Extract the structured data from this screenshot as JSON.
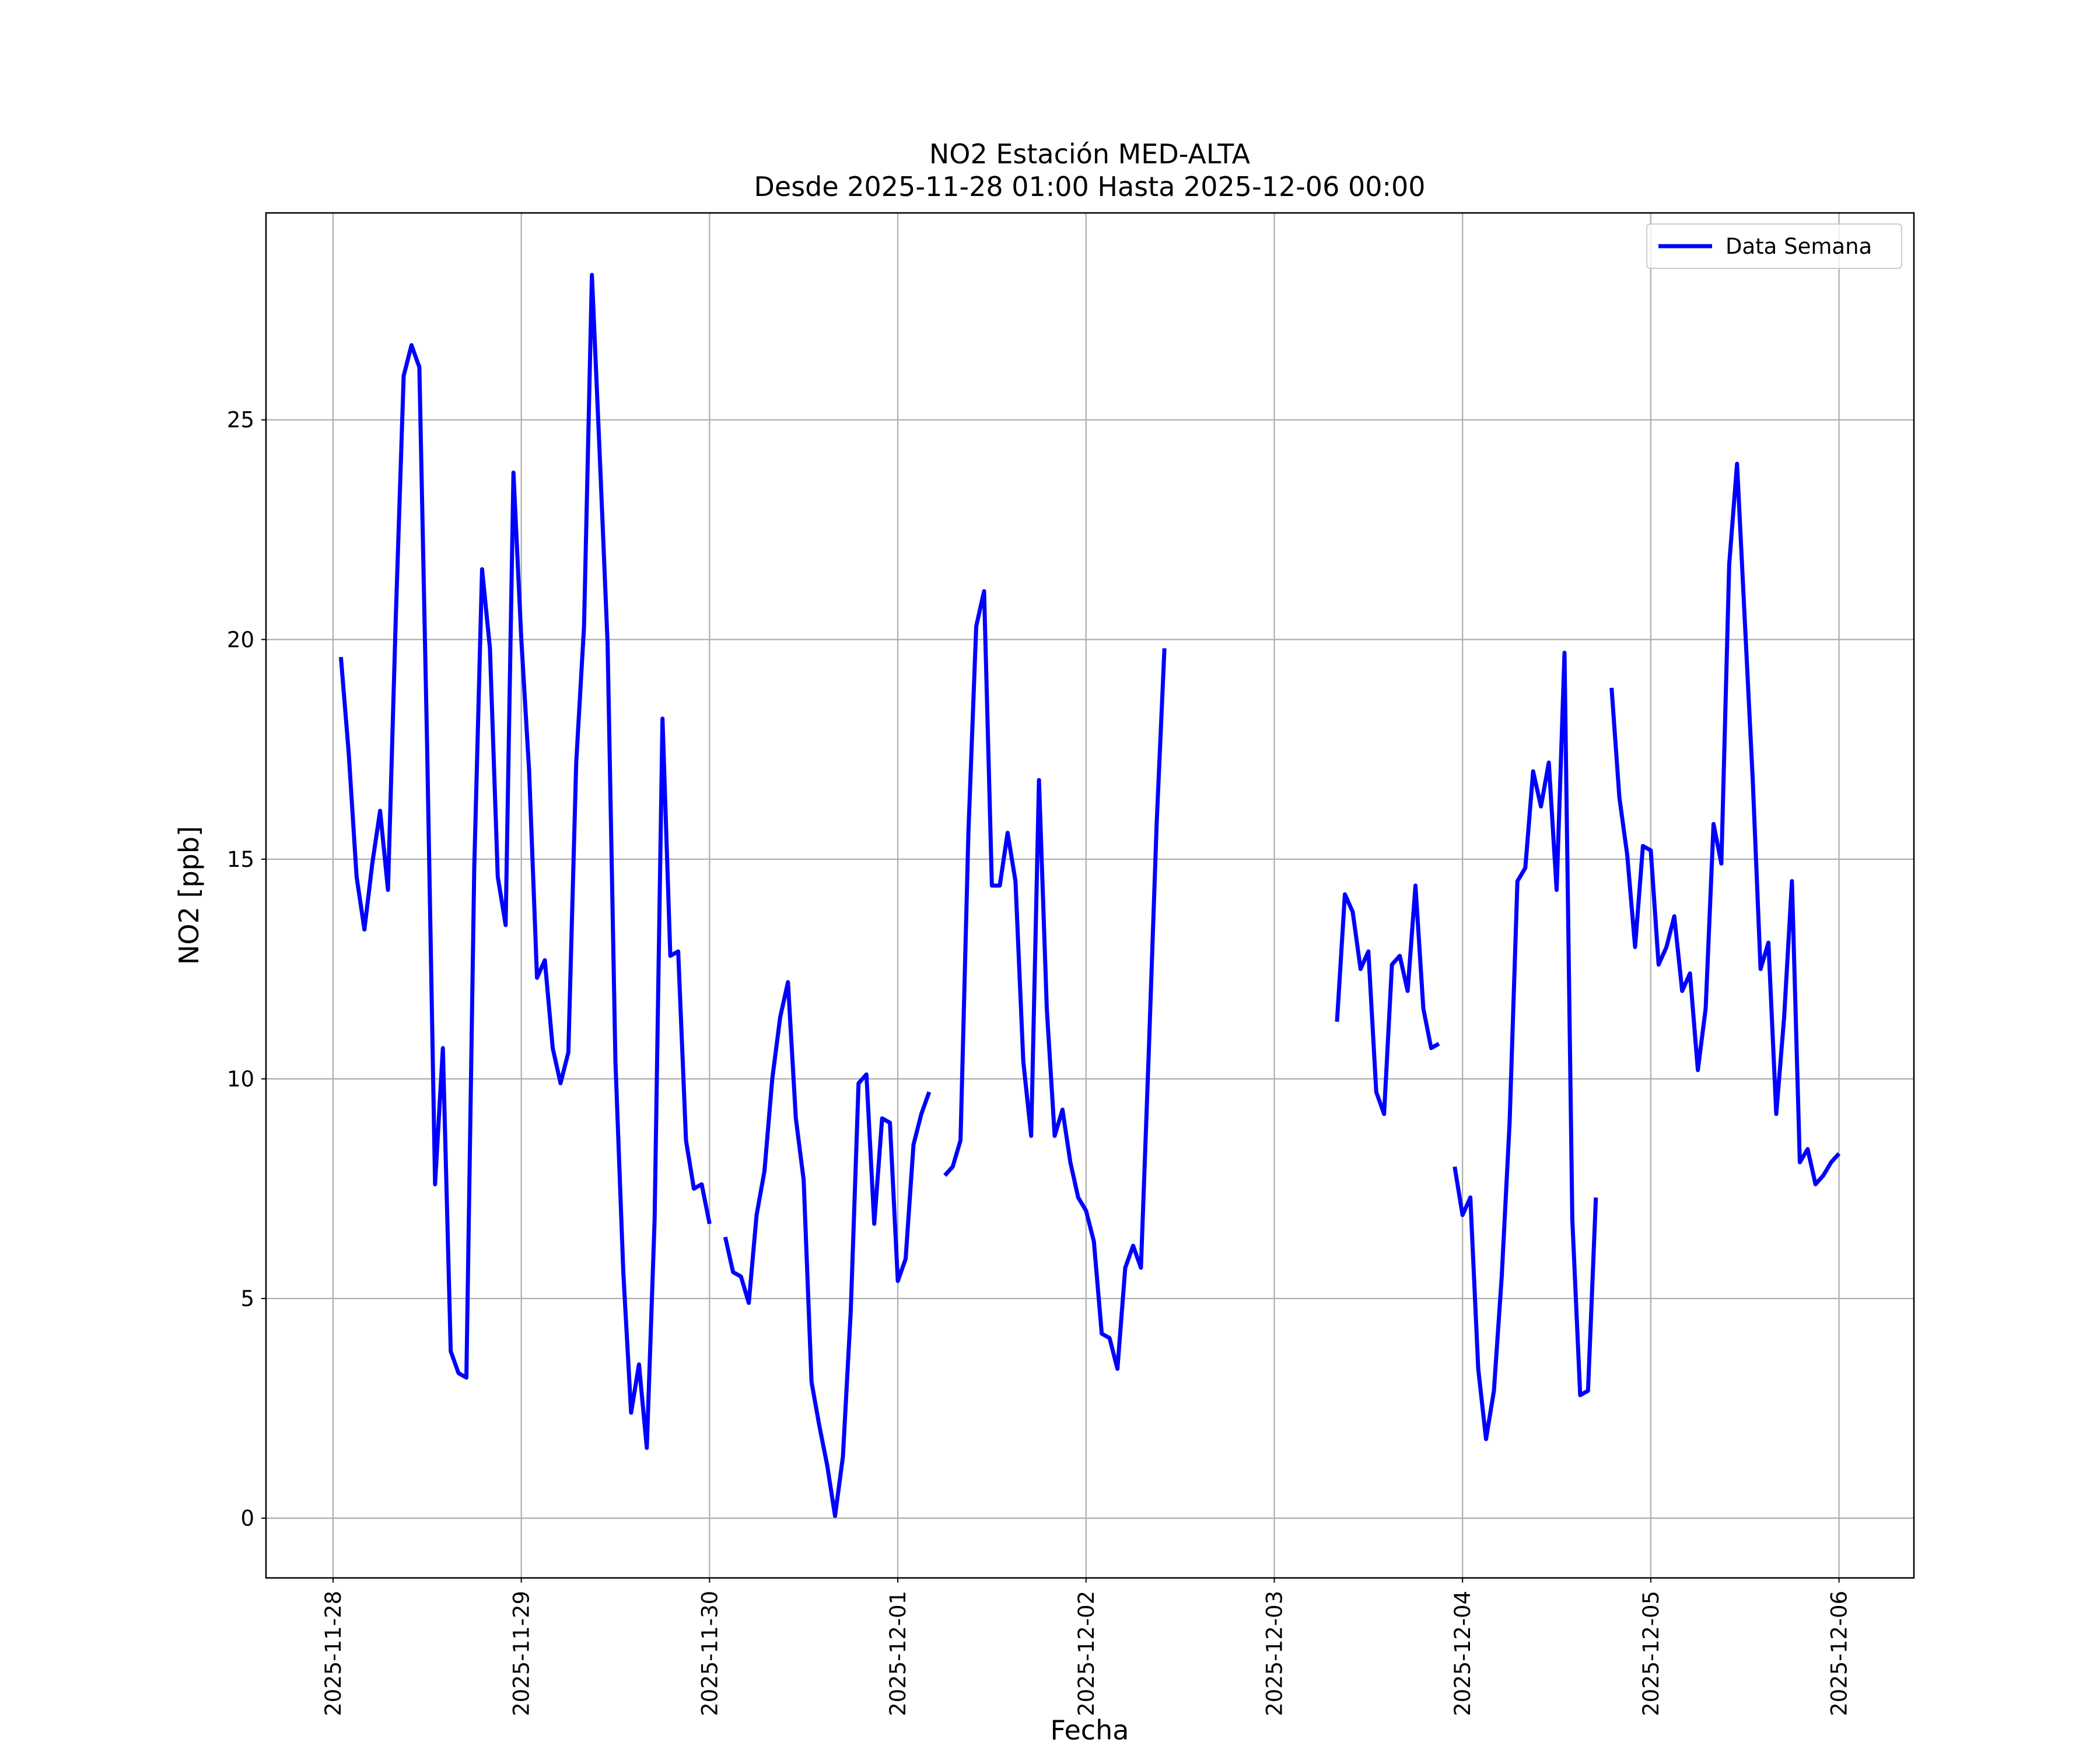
{
  "chart_data": {
    "type": "line",
    "title": "NO2 Estación MED-ALTA",
    "subtitle": "Desde 2025-11-28 01:00 Hasta 2025-12-06 00:00",
    "xlabel": "Fecha",
    "ylabel": "NO2 [ppb]",
    "x": [
      "2025-11-28 01:00",
      "2025-11-28 02:00",
      "2025-11-28 03:00",
      "2025-11-28 04:00",
      "2025-11-28 05:00",
      "2025-11-28 06:00",
      "2025-11-28 07:00",
      "2025-11-28 08:00",
      "2025-11-28 09:00",
      "2025-11-28 10:00",
      "2025-11-28 11:00",
      "2025-11-28 12:00",
      "2025-11-28 13:00",
      "2025-11-28 14:00",
      "2025-11-28 15:00",
      "2025-11-28 16:00",
      "2025-11-28 17:00",
      "2025-11-28 18:00",
      "2025-11-28 19:00",
      "2025-11-28 20:00",
      "2025-11-28 21:00",
      "2025-11-28 22:00",
      "2025-11-28 23:00",
      "2025-11-29 00:00",
      "2025-11-29 01:00",
      "2025-11-29 02:00",
      "2025-11-29 03:00",
      "2025-11-29 04:00",
      "2025-11-29 05:00",
      "2025-11-29 06:00",
      "2025-11-29 07:00",
      "2025-11-29 08:00",
      "2025-11-29 09:00",
      "2025-11-29 10:00",
      "2025-11-29 11:00",
      "2025-11-29 12:00",
      "2025-11-29 13:00",
      "2025-11-29 14:00",
      "2025-11-29 15:00",
      "2025-11-29 16:00",
      "2025-11-29 17:00",
      "2025-11-29 18:00",
      "2025-11-29 19:00",
      "2025-11-29 20:00",
      "2025-11-29 21:00",
      "2025-11-29 22:00",
      "2025-11-29 23:00",
      "2025-11-30 00:00",
      "2025-11-30 01:00",
      "2025-11-30 02:00",
      "2025-11-30 03:00",
      "2025-11-30 04:00",
      "2025-11-30 05:00",
      "2025-11-30 06:00",
      "2025-11-30 07:00",
      "2025-11-30 08:00",
      "2025-11-30 09:00",
      "2025-11-30 10:00",
      "2025-11-30 11:00",
      "2025-11-30 12:00",
      "2025-11-30 13:00",
      "2025-11-30 14:00",
      "2025-11-30 15:00",
      "2025-11-30 16:00",
      "2025-11-30 17:00",
      "2025-11-30 18:00",
      "2025-11-30 19:00",
      "2025-11-30 20:00",
      "2025-11-30 21:00",
      "2025-11-30 22:00",
      "2025-11-30 23:00",
      "2025-12-01 00:00",
      "2025-12-01 01:00",
      "2025-12-01 02:00",
      "2025-12-01 03:00",
      "2025-12-01 04:00",
      "2025-12-01 05:00",
      "2025-12-01 06:00",
      "2025-12-01 07:00",
      "2025-12-01 08:00",
      "2025-12-01 09:00",
      "2025-12-01 10:00",
      "2025-12-01 11:00",
      "2025-12-01 12:00",
      "2025-12-01 13:00",
      "2025-12-01 14:00",
      "2025-12-01 15:00",
      "2025-12-01 16:00",
      "2025-12-01 17:00",
      "2025-12-01 18:00",
      "2025-12-01 19:00",
      "2025-12-01 20:00",
      "2025-12-01 21:00",
      "2025-12-01 22:00",
      "2025-12-01 23:00",
      "2025-12-02 00:00",
      "2025-12-02 01:00",
      "2025-12-02 02:00",
      "2025-12-02 03:00",
      "2025-12-02 04:00",
      "2025-12-02 05:00",
      "2025-12-02 06:00",
      "2025-12-02 07:00",
      "2025-12-02 08:00",
      "2025-12-02 09:00",
      "2025-12-02 10:00",
      "2025-12-02 11:00",
      "2025-12-02 12:00",
      "2025-12-02 13:00",
      "2025-12-02 14:00",
      "2025-12-02 15:00",
      "2025-12-02 16:00",
      "2025-12-02 17:00",
      "2025-12-02 18:00",
      "2025-12-02 19:00",
      "2025-12-02 20:00",
      "2025-12-02 21:00",
      "2025-12-02 22:00",
      "2025-12-02 23:00",
      "2025-12-03 00:00",
      "2025-12-03 01:00",
      "2025-12-03 02:00",
      "2025-12-03 03:00",
      "2025-12-03 04:00",
      "2025-12-03 05:00",
      "2025-12-03 06:00",
      "2025-12-03 07:00",
      "2025-12-03 08:00",
      "2025-12-03 09:00",
      "2025-12-03 10:00",
      "2025-12-03 11:00",
      "2025-12-03 12:00",
      "2025-12-03 13:00",
      "2025-12-03 14:00",
      "2025-12-03 15:00",
      "2025-12-03 16:00",
      "2025-12-03 17:00",
      "2025-12-03 18:00",
      "2025-12-03 19:00",
      "2025-12-03 20:00",
      "2025-12-03 21:00",
      "2025-12-03 22:00",
      "2025-12-03 23:00",
      "2025-12-04 00:00",
      "2025-12-04 01:00",
      "2025-12-04 02:00",
      "2025-12-04 03:00",
      "2025-12-04 04:00",
      "2025-12-04 05:00",
      "2025-12-04 06:00",
      "2025-12-04 07:00",
      "2025-12-04 08:00",
      "2025-12-04 09:00",
      "2025-12-04 10:00",
      "2025-12-04 11:00",
      "2025-12-04 12:00",
      "2025-12-04 13:00",
      "2025-12-04 14:00",
      "2025-12-04 15:00",
      "2025-12-04 16:00",
      "2025-12-04 17:00",
      "2025-12-04 18:00",
      "2025-12-04 19:00",
      "2025-12-04 20:00",
      "2025-12-04 21:00",
      "2025-12-04 22:00",
      "2025-12-04 23:00",
      "2025-12-05 00:00",
      "2025-12-05 01:00",
      "2025-12-05 02:00",
      "2025-12-05 03:00",
      "2025-12-05 04:00",
      "2025-12-05 05:00",
      "2025-12-05 06:00",
      "2025-12-05 07:00",
      "2025-12-05 08:00",
      "2025-12-05 09:00",
      "2025-12-05 10:00",
      "2025-12-05 11:00",
      "2025-12-05 12:00",
      "2025-12-05 13:00",
      "2025-12-05 14:00",
      "2025-12-05 15:00",
      "2025-12-05 16:00",
      "2025-12-05 17:00",
      "2025-12-05 18:00",
      "2025-12-05 19:00",
      "2025-12-05 20:00",
      "2025-12-05 21:00",
      "2025-12-05 22:00",
      "2025-12-05 23:00",
      "2025-12-06 00:00"
    ],
    "series": [
      {
        "name": "Data Semana",
        "color": "#0000ff",
        "values": [
          19.6,
          17.4,
          14.6,
          13.4,
          14.9,
          16.1,
          14.3,
          20.5,
          26.0,
          26.7,
          26.2,
          17.5,
          7.6,
          10.7,
          3.8,
          3.3,
          3.2,
          14.8,
          21.6,
          19.8,
          14.6,
          13.5,
          23.8,
          20.0,
          17.0,
          12.3,
          12.7,
          10.7,
          9.9,
          10.6,
          17.2,
          20.3,
          28.3,
          24.2,
          19.9,
          10.4,
          5.6,
          2.4,
          3.5,
          1.6,
          6.8,
          18.2,
          12.8,
          12.9,
          8.6,
          7.5,
          7.6,
          6.7,
          null,
          6.4,
          5.6,
          5.5,
          4.9,
          6.9,
          7.9,
          10.0,
          11.4,
          12.2,
          9.1,
          7.7,
          3.1,
          2.1,
          1.2,
          0.05,
          1.4,
          4.7,
          9.9,
          10.1,
          6.7,
          9.1,
          9.0,
          5.4,
          5.9,
          8.5,
          9.2,
          9.7,
          null,
          7.8,
          8.0,
          8.6,
          15.6,
          20.3,
          21.1,
          14.4,
          14.4,
          15.6,
          14.5,
          10.4,
          8.7,
          16.8,
          11.6,
          8.7,
          9.3,
          8.1,
          7.3,
          7.0,
          6.3,
          4.2,
          4.1,
          3.4,
          5.7,
          6.2,
          5.7,
          10.6,
          15.8,
          19.8,
          null,
          null,
          null,
          null,
          null,
          null,
          null,
          null,
          null,
          null,
          null,
          null,
          null,
          null,
          null,
          null,
          null,
          null,
          null,
          null,
          null,
          11.3,
          14.2,
          13.8,
          12.5,
          12.9,
          9.7,
          9.2,
          12.6,
          12.8,
          12.0,
          14.4,
          11.6,
          10.7,
          10.8,
          null,
          8.0,
          6.9,
          7.3,
          3.4,
          1.8,
          2.9,
          5.5,
          9.0,
          14.5,
          14.8,
          17.0,
          16.2,
          17.2,
          14.3,
          19.7,
          6.8,
          2.8,
          2.9,
          7.3,
          null,
          18.9,
          16.4,
          15.1,
          13.0,
          15.3,
          15.2,
          12.6,
          13.0,
          13.7,
          12.0,
          12.4,
          10.2,
          11.6,
          15.8,
          14.9,
          21.7,
          24.0,
          20.4,
          16.8,
          12.5,
          13.1,
          9.2,
          11.4,
          14.5,
          8.1,
          8.4,
          7.6,
          7.8,
          8.1,
          8.3
        ]
      }
    ],
    "xlim": [
      "2025-11-27 15:27",
      "2025-12-06 09:33"
    ],
    "xticks": [
      "2025-11-28",
      "2025-11-29",
      "2025-11-30",
      "2025-12-01",
      "2025-12-02",
      "2025-12-03",
      "2025-12-04",
      "2025-12-05",
      "2025-12-06"
    ],
    "ylim": [
      -1.36,
      29.71
    ],
    "yticks": [
      0,
      5,
      10,
      15,
      20,
      25
    ],
    "grid": true,
    "legend": "upper right"
  }
}
